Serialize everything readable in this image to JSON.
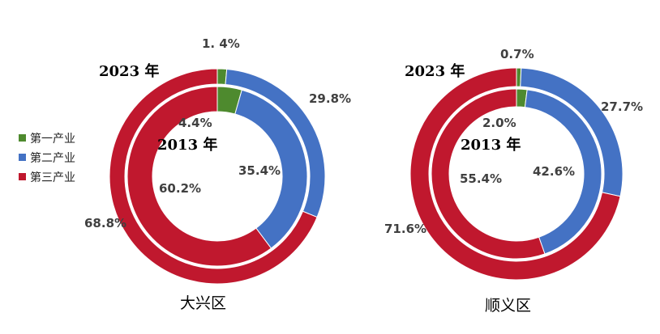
{
  "legend": [
    "第一产业",
    "第二产业",
    "第三产业"
  ],
  "colors": {
    "primary": "#4e8a2e",
    "secondary": "#4472c4",
    "tertiary": "#c0182e"
  },
  "chart_data": [
    {
      "type": "pie",
      "title": "大兴区",
      "categories": [
        "第一产业",
        "第二产业",
        "第三产业"
      ],
      "series": [
        {
          "name": "2023 年",
          "values": [
            1.4,
            29.8,
            68.8
          ],
          "labels": [
            "1. 4%",
            "29.8%",
            "68.8%"
          ]
        },
        {
          "name": "2013 年",
          "values": [
            4.4,
            35.4,
            60.2
          ],
          "labels": [
            "4.4%",
            "35.4%",
            "60.2%"
          ]
        }
      ],
      "legend_position": "left"
    },
    {
      "type": "pie",
      "title": "顺义区",
      "categories": [
        "第一产业",
        "第二产业",
        "第三产业"
      ],
      "series": [
        {
          "name": "2023 年",
          "values": [
            0.7,
            27.7,
            71.6
          ],
          "labels": [
            "0.7%",
            "27.7%",
            "71.6%"
          ]
        },
        {
          "name": "2013 年",
          "values": [
            2.0,
            42.6,
            55.4
          ],
          "labels": [
            "2.0%",
            "42.6%",
            "55.4%"
          ]
        }
      ]
    }
  ]
}
